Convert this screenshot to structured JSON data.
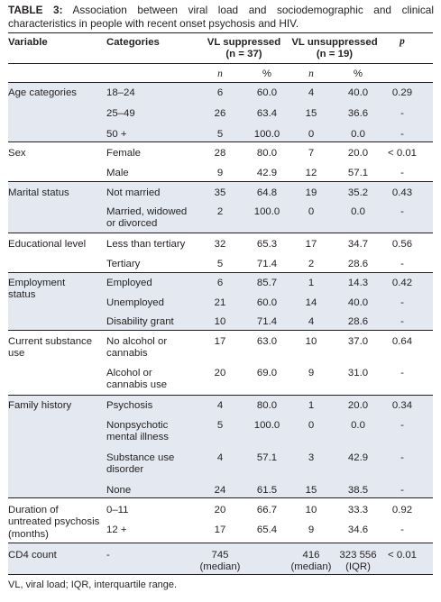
{
  "caption": {
    "label": "TABLE 3:",
    "text": " Association between viral load and sociodemographic and clinical characteristics in people with recent onset psychosis and HIV."
  },
  "header": {
    "variable": "Variable",
    "categories": "Categories",
    "group1": [
      "VL suppressed",
      "(n = 37)"
    ],
    "group2": [
      "VL unsuppressed",
      "(n = 19)"
    ],
    "p": "p",
    "n": "n",
    "pct": "%"
  },
  "groups": [
    {
      "variable": [
        "Age categories"
      ],
      "rows": [
        {
          "category": [
            "18–24"
          ],
          "n1": "6",
          "p1": "60.0",
          "n2": "4",
          "p2": "40.0",
          "p": "0.29"
        },
        {
          "category": [
            "25–49"
          ],
          "n1": "26",
          "p1": "63.4",
          "n2": "15",
          "p2": "36.6",
          "p": "-"
        },
        {
          "category": [
            "50 +"
          ],
          "n1": "5",
          "p1": "100.0",
          "n2": "0",
          "p2": "0.0",
          "p": "-"
        }
      ]
    },
    {
      "variable": [
        "Sex"
      ],
      "rows": [
        {
          "category": [
            "Female"
          ],
          "n1": "28",
          "p1": "80.0",
          "n2": "7",
          "p2": "20.0",
          "p": "< 0.01"
        },
        {
          "category": [
            "Male"
          ],
          "n1": "9",
          "p1": "42.9",
          "n2": "12",
          "p2": "57.1",
          "p": "-"
        }
      ]
    },
    {
      "variable": [
        "Marital status"
      ],
      "rows": [
        {
          "category": [
            "Not married"
          ],
          "n1": "35",
          "p1": "64.8",
          "n2": "19",
          "p2": "35.2",
          "p": "0.43"
        },
        {
          "category": [
            "Married, widowed",
            "or divorced"
          ],
          "n1": "2",
          "p1": "100.0",
          "n2": "0",
          "p2": "0.0",
          "p": "-"
        }
      ]
    },
    {
      "variable": [
        "Educational level"
      ],
      "rows": [
        {
          "category": [
            "Less than tertiary"
          ],
          "n1": "32",
          "p1": "65.3",
          "n2": "17",
          "p2": "34.7",
          "p": "0.56"
        },
        {
          "category": [
            "Tertiary"
          ],
          "n1": "5",
          "p1": "71.4",
          "n2": "2",
          "p2": "28.6",
          "p": "-"
        }
      ]
    },
    {
      "variable": [
        "Employment",
        "status"
      ],
      "rows": [
        {
          "category": [
            "Employed"
          ],
          "n1": "6",
          "p1": "85.7",
          "n2": "1",
          "p2": "14.3",
          "p": "0.42"
        },
        {
          "category": [
            "Unemployed"
          ],
          "n1": "21",
          "p1": "60.0",
          "n2": "14",
          "p2": "40.0",
          "p": "-"
        },
        {
          "category": [
            "Disability grant"
          ],
          "n1": "10",
          "p1": "71.4",
          "n2": "4",
          "p2": "28.6",
          "p": "-"
        }
      ]
    },
    {
      "variable": [
        "Current substance",
        "use"
      ],
      "rows": [
        {
          "category": [
            "No alcohol or",
            "cannabis"
          ],
          "n1": "17",
          "p1": "63.0",
          "n2": "10",
          "p2": "37.0",
          "p": "0.64"
        },
        {
          "category": [
            "Alcohol or",
            "cannabis use"
          ],
          "n1": "20",
          "p1": "69.0",
          "n2": "9",
          "p2": "31.0",
          "p": "-"
        }
      ]
    },
    {
      "variable": [
        "Family history"
      ],
      "rows": [
        {
          "category": [
            "Psychosis"
          ],
          "n1": "4",
          "p1": "80.0",
          "n2": "1",
          "p2": "20.0",
          "p": "0.34"
        },
        {
          "category": [
            "Nonpsychotic",
            "mental illness"
          ],
          "n1": "5",
          "p1": "100.0",
          "n2": "0",
          "p2": "0.0",
          "p": "-"
        },
        {
          "category": [
            "Substance use",
            "disorder"
          ],
          "n1": "4",
          "p1": "57.1",
          "n2": "3",
          "p2": "42.9",
          "p": "-"
        },
        {
          "category": [
            "None"
          ],
          "n1": "24",
          "p1": "61.5",
          "n2": "15",
          "p2": "38.5",
          "p": "-"
        }
      ]
    },
    {
      "variable": [
        "Duration of",
        "untreated psychosis",
        "(months)"
      ],
      "rows": [
        {
          "category": [
            "0–11"
          ],
          "n1": "20",
          "p1": "66.7",
          "n2": "10",
          "p2": "33.3",
          "p": "0.92"
        },
        {
          "category": [
            "12 +"
          ],
          "n1": "17",
          "p1": "65.4",
          "n2": "9",
          "p2": "34.6",
          "p": "-"
        }
      ]
    },
    {
      "variable": [
        "CD4 count"
      ],
      "rows": [
        {
          "category": [
            "-"
          ],
          "n1": "745",
          "n1b": "(median)",
          "p1": "",
          "n2": "416",
          "n2b": "(median)",
          "p2": "323 556",
          "p2b": "(IQR)",
          "p": "< 0.01"
        }
      ]
    }
  ],
  "footnote": "VL, viral load; IQR, interquartile range."
}
